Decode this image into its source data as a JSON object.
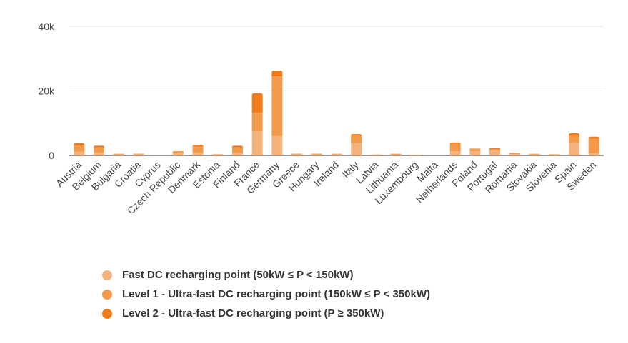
{
  "chart_data": {
    "type": "bar",
    "stacked": true,
    "categories": [
      "Austria",
      "Belgium",
      "Bulgaria",
      "Croatia",
      "Cyprus",
      "Czech Republic",
      "Denmark",
      "Estonia",
      "Finland",
      "France",
      "Germany",
      "Greece",
      "Hungary",
      "Ireland",
      "Italy",
      "Latvia",
      "Lithuania",
      "Luxembourg",
      "Malta",
      "Netherlands",
      "Poland",
      "Portugal",
      "Romania",
      "Slovakia",
      "Slovenia",
      "Spain",
      "Sweden"
    ],
    "series": [
      {
        "name": "Fast DC recharging point (50kW ≤ P < 150kW)",
        "color": "#f4b27d",
        "values": [
          1200,
          900,
          300,
          350,
          0,
          700,
          900,
          200,
          800,
          7500,
          6000,
          300,
          300,
          300,
          3800,
          150,
          250,
          100,
          0,
          1300,
          1300,
          1500,
          400,
          300,
          200,
          4000,
          700
        ]
      },
      {
        "name": "Level 1 - Ultra-fast DC recharging point (150kW ≤ P < 350kW)",
        "color": "#f29a4a",
        "values": [
          2000,
          1600,
          150,
          150,
          0,
          450,
          1800,
          100,
          1700,
          5800,
          18500,
          200,
          200,
          150,
          2300,
          80,
          200,
          80,
          0,
          2300,
          600,
          500,
          300,
          150,
          100,
          2000,
          4500
        ]
      },
      {
        "name": "Level 2 - Ultra-fast DC recharging point (P ≥ 350kW)",
        "color": "#ef7b1a",
        "values": [
          600,
          500,
          50,
          50,
          0,
          150,
          600,
          50,
          500,
          6000,
          1800,
          50,
          50,
          50,
          500,
          20,
          50,
          20,
          0,
          400,
          200,
          200,
          100,
          50,
          50,
          900,
          600
        ]
      }
    ],
    "y_ticks": [
      "0",
      "20k",
      "40k"
    ],
    "y_tick_values": [
      0,
      20000,
      40000
    ],
    "ylim": [
      0,
      40000
    ],
    "grid": true,
    "legend_position": "bottom-left"
  }
}
